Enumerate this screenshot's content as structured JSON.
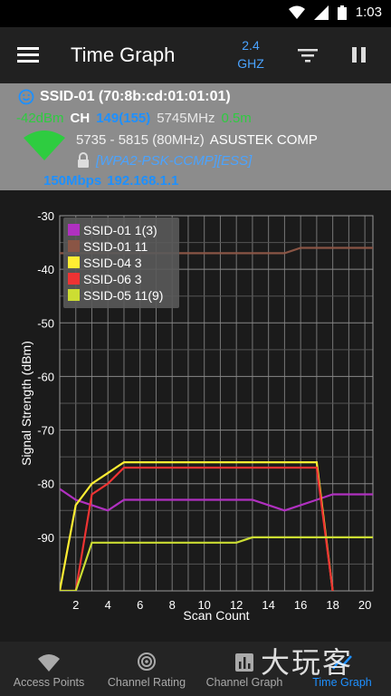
{
  "status_bar": {
    "time": "1:03",
    "icons": [
      "wifi-icon",
      "signal-icon",
      "battery-icon"
    ]
  },
  "app_bar": {
    "title": "Time Graph",
    "band_line1": "2.4",
    "band_line2": "GHZ",
    "icons": [
      "menu-icon",
      "filter-icon",
      "pause-icon"
    ]
  },
  "wifi": {
    "ssid": "SSID-01 (70:8b:cd:01:01:01)",
    "signal": "-42dBm",
    "ch_label": "CH",
    "channel": "149(155)",
    "frequency": "5745MHz",
    "distance": "0.5m",
    "range": "5735 - 5815 (80MHz)",
    "vendor": "ASUSTEK COMP",
    "security": "[WPA2-PSK-CCMP][ESS]",
    "speed": "150Mbps",
    "ip": "192.168.1.1",
    "colors": {
      "signal": "#2ecc40",
      "channel": "#1e90ff",
      "frequency": "#e0e0e0",
      "distance": "#2ecc40"
    }
  },
  "chart_data": {
    "type": "line",
    "xlabel": "Scan Count",
    "ylabel": "Signal Strength (dBm)",
    "xlim": [
      1,
      20.5
    ],
    "ylim": [
      -100,
      -30
    ],
    "x_ticks": [
      2,
      4,
      6,
      8,
      10,
      12,
      14,
      16,
      18,
      20
    ],
    "y_ticks": [
      -30,
      -40,
      -50,
      -60,
      -70,
      -80,
      -90
    ],
    "grid": true,
    "legend_position": "top-left",
    "series": [
      {
        "name": "SSID-01 1(3)",
        "color": "#b030c0",
        "x": [
          1,
          2,
          3,
          4,
          5,
          6,
          7,
          8,
          9,
          10,
          11,
          12,
          13,
          14,
          15,
          16,
          17,
          18,
          19,
          20,
          20.5
        ],
        "y": [
          -81,
          -83,
          -84,
          -85,
          -83,
          -83,
          -83,
          -83,
          -83,
          -83,
          -83,
          -83,
          -83,
          -84,
          -85,
          -84,
          -83,
          -82,
          -82,
          -82,
          -82
        ]
      },
      {
        "name": "SSID-01 11",
        "color": "#8a5545",
        "x": [
          1,
          2,
          3,
          4,
          5,
          6,
          7,
          8,
          9,
          10,
          11,
          12,
          13,
          14,
          15,
          16,
          17,
          18,
          19,
          20,
          20.5
        ],
        "y": [
          -37,
          -37,
          -37,
          -37,
          -37,
          -37,
          -37,
          -37,
          -37,
          -37,
          -37,
          -37,
          -37,
          -37,
          -37,
          -36,
          -36,
          -36,
          -36,
          -36,
          -36
        ]
      },
      {
        "name": "SSID-04 3",
        "color": "#ffee33",
        "x": [
          1,
          2,
          3,
          4,
          5,
          6,
          7,
          8,
          9,
          10,
          11,
          12,
          13,
          14,
          15,
          16,
          17,
          18
        ],
        "y": [
          -100,
          -84,
          -80,
          -78,
          -76,
          -76,
          -76,
          -76,
          -76,
          -76,
          -76,
          -76,
          -76,
          -76,
          -76,
          -76,
          -76,
          -100
        ]
      },
      {
        "name": "SSID-06 3",
        "color": "#ee3333",
        "x": [
          1,
          2,
          3,
          4,
          5,
          6,
          7,
          8,
          9,
          10,
          11,
          12,
          13,
          14,
          15,
          16,
          17,
          18
        ],
        "y": [
          -100,
          -100,
          -82,
          -80,
          -77,
          -77,
          -77,
          -77,
          -77,
          -77,
          -77,
          -77,
          -77,
          -77,
          -77,
          -77,
          -77,
          -100
        ]
      },
      {
        "name": "SSID-05 11(9)",
        "color": "#ccdd33",
        "x": [
          1,
          2,
          3,
          4,
          5,
          6,
          7,
          8,
          9,
          10,
          11,
          12,
          13,
          14,
          15,
          16,
          17,
          18,
          19,
          20,
          20.5
        ],
        "y": [
          -100,
          -100,
          -91,
          -91,
          -91,
          -91,
          -91,
          -91,
          -91,
          -91,
          -91,
          -91,
          -90,
          -90,
          -90,
          -90,
          -90,
          -90,
          -90,
          -90,
          -90
        ]
      }
    ]
  },
  "nav": {
    "items": [
      {
        "label": "Access Points",
        "icon": "wifi-icon"
      },
      {
        "label": "Channel Rating",
        "icon": "radar-icon"
      },
      {
        "label": "Channel Graph",
        "icon": "bar-chart-icon"
      },
      {
        "label": "Time Graph",
        "icon": "line-chart-icon",
        "active": true
      }
    ]
  },
  "watermark": "大玩客"
}
